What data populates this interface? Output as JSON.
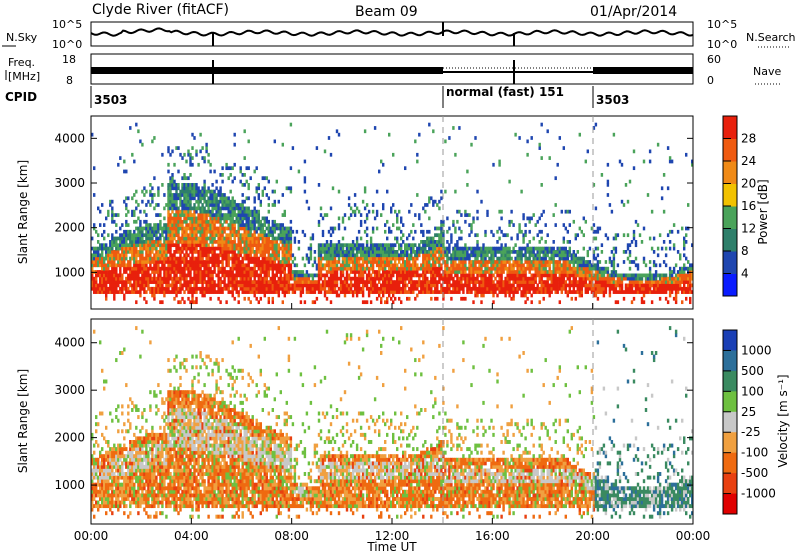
{
  "header": {
    "station": "Clyde River (fitACF)",
    "beam": "Beam 09",
    "date": "01/Apr/2014"
  },
  "top_panels": {
    "nsky_label": "N.Sky",
    "nsearch_label": "N.Search",
    "nsky_ticks": [
      "10^5",
      "10^0"
    ],
    "nsearch_ticks": [
      "10^5",
      "10^0"
    ],
    "freq_label_1": "Freq.",
    "freq_label_2": "[MHz]",
    "freq_ticks": [
      "18",
      "8"
    ],
    "nave_ticks": [
      "60",
      "0"
    ],
    "nave_label": "Nave",
    "cpid_label": "CPID",
    "cpid_segments": [
      {
        "text": "3503",
        "start_h": 0,
        "end_h": 14
      },
      {
        "text": "normal (fast) 151",
        "start_h": 14,
        "end_h": 20
      },
      {
        "text": "3503",
        "start_h": 20,
        "end_h": 24
      }
    ]
  },
  "chart_data": [
    {
      "type": "heatmap",
      "title": "",
      "xlabel": "Time UT",
      "ylabel": "Slant Range [km]",
      "xlim_hours": [
        0,
        24
      ],
      "ylim": [
        180,
        4500
      ],
      "x_ticks": [
        "00:00",
        "04:00",
        "08:00",
        "12:00",
        "16:00",
        "20:00",
        "00:00"
      ],
      "y_ticks": [
        1000,
        2000,
        3000,
        4000
      ],
      "colorbar": {
        "label": "Power [dB]",
        "ticks": [
          "4",
          "8",
          "12",
          "16",
          "20",
          "24",
          "28"
        ],
        "colors": [
          "#0a1cff",
          "#1f46b0",
          "#2e7f6a",
          "#4aa35a",
          "#f2c200",
          "#f08a16",
          "#ef5a10",
          "#e8200c"
        ]
      },
      "dashed_lines_h": [
        14,
        20
      ]
    },
    {
      "type": "heatmap",
      "title": "",
      "xlabel": "Time UT",
      "ylabel": "Slant Range [km]",
      "xlim_hours": [
        0,
        24
      ],
      "ylim": [
        180,
        4500
      ],
      "x_ticks": [
        "00:00",
        "04:00",
        "08:00",
        "12:00",
        "16:00",
        "20:00",
        "00:00"
      ],
      "y_ticks": [
        1000,
        2000,
        3000,
        4000
      ],
      "colorbar": {
        "label": "Velocity [m s⁻¹]",
        "ticks": [
          "1000",
          "500",
          "100",
          "25",
          "-25",
          "-100",
          "-500",
          "-1000"
        ],
        "colors": [
          "#1a3fb5",
          "#2c6f9a",
          "#3a8a60",
          "#6ec040",
          "#c8c8c8",
          "#f0a040",
          "#ef6a10",
          "#e84010",
          "#e00000"
        ]
      },
      "dashed_lines_h": [
        14,
        20
      ]
    }
  ]
}
